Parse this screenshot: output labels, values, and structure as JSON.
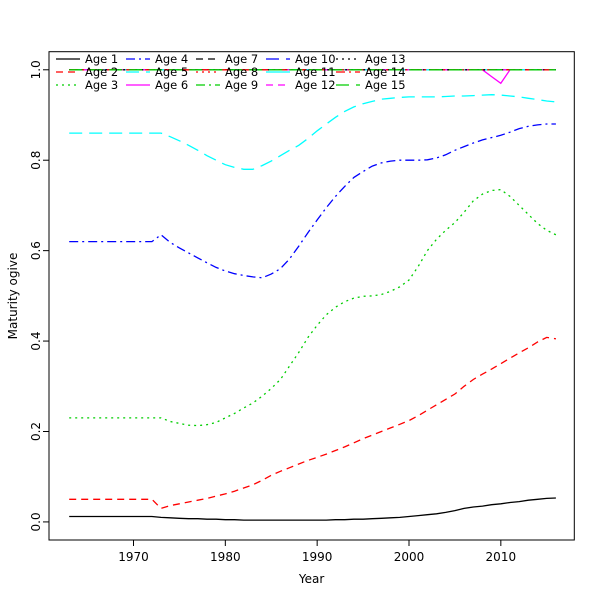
{
  "figure": {
    "background": "#FFFFFF"
  },
  "chart_data": {
    "type": "line",
    "title": "",
    "xlabel": "Year",
    "ylabel": "Maturity ogive",
    "x_ticks": [
      1970,
      1980,
      1990,
      2000,
      2010
    ],
    "y_ticks": [
      0.0,
      0.2,
      0.4,
      0.6,
      0.8,
      1.0
    ],
    "xlim": [
      1960.8,
      2018.0
    ],
    "ylim": [
      -0.04,
      1.04
    ],
    "grid": false,
    "legend_position": "top-inside",
    "legend_ncol": 5,
    "x": [
      1963,
      1964,
      1965,
      1966,
      1967,
      1968,
      1969,
      1970,
      1971,
      1972,
      1973,
      1974,
      1975,
      1976,
      1977,
      1978,
      1979,
      1980,
      1981,
      1982,
      1983,
      1984,
      1985,
      1986,
      1987,
      1988,
      1989,
      1990,
      1991,
      1992,
      1993,
      1994,
      1995,
      1996,
      1997,
      1998,
      1999,
      2000,
      2001,
      2002,
      2003,
      2004,
      2005,
      2006,
      2007,
      2008,
      2009,
      2010,
      2011,
      2012,
      2013,
      2014,
      2015,
      2016
    ],
    "series": [
      {
        "name": "Age 1",
        "color": "#000000",
        "linetype": "solid",
        "values": [
          0.012,
          0.012,
          0.012,
          0.012,
          0.012,
          0.012,
          0.012,
          0.012,
          0.012,
          0.012,
          0.01,
          0.009,
          0.008,
          0.007,
          0.007,
          0.006,
          0.006,
          0.005,
          0.005,
          0.004,
          0.004,
          0.004,
          0.004,
          0.004,
          0.004,
          0.004,
          0.004,
          0.004,
          0.004,
          0.005,
          0.005,
          0.006,
          0.006,
          0.007,
          0.008,
          0.009,
          0.01,
          0.012,
          0.014,
          0.016,
          0.018,
          0.021,
          0.025,
          0.03,
          0.033,
          0.035,
          0.038,
          0.04,
          0.043,
          0.045,
          0.048,
          0.05,
          0.052,
          0.053
        ]
      },
      {
        "name": "Age 2",
        "color": "#FF0000",
        "linetype": "dashed",
        "values": [
          0.05,
          0.05,
          0.05,
          0.05,
          0.05,
          0.05,
          0.05,
          0.05,
          0.05,
          0.05,
          0.03,
          0.036,
          0.04,
          0.044,
          0.048,
          0.052,
          0.057,
          0.062,
          0.068,
          0.075,
          0.082,
          0.092,
          0.103,
          0.112,
          0.12,
          0.128,
          0.136,
          0.143,
          0.15,
          0.158,
          0.166,
          0.175,
          0.184,
          0.192,
          0.2,
          0.208,
          0.216,
          0.224,
          0.235,
          0.247,
          0.259,
          0.271,
          0.283,
          0.3,
          0.315,
          0.327,
          0.338,
          0.35,
          0.362,
          0.374,
          0.385,
          0.398,
          0.408,
          0.405
        ]
      },
      {
        "name": "Age 3",
        "color": "#00CD00",
        "linetype": "dotted",
        "values": [
          0.23,
          0.23,
          0.23,
          0.23,
          0.23,
          0.23,
          0.23,
          0.23,
          0.23,
          0.23,
          0.23,
          0.222,
          0.218,
          0.214,
          0.213,
          0.215,
          0.22,
          0.23,
          0.24,
          0.252,
          0.263,
          0.278,
          0.295,
          0.315,
          0.345,
          0.375,
          0.408,
          0.435,
          0.458,
          0.475,
          0.487,
          0.495,
          0.499,
          0.5,
          0.503,
          0.51,
          0.52,
          0.535,
          0.565,
          0.6,
          0.625,
          0.645,
          0.662,
          0.685,
          0.71,
          0.725,
          0.733,
          0.735,
          0.72,
          0.7,
          0.68,
          0.66,
          0.645,
          0.635
        ]
      },
      {
        "name": "Age 4",
        "color": "#0000FF",
        "linetype": "dotdash",
        "values": [
          0.62,
          0.62,
          0.62,
          0.62,
          0.62,
          0.62,
          0.62,
          0.62,
          0.62,
          0.62,
          0.635,
          0.618,
          0.606,
          0.595,
          0.584,
          0.573,
          0.563,
          0.555,
          0.549,
          0.545,
          0.542,
          0.54,
          0.548,
          0.56,
          0.582,
          0.61,
          0.64,
          0.668,
          0.695,
          0.72,
          0.742,
          0.762,
          0.775,
          0.787,
          0.794,
          0.798,
          0.8,
          0.8,
          0.8,
          0.801,
          0.805,
          0.812,
          0.822,
          0.83,
          0.838,
          0.845,
          0.85,
          0.855,
          0.862,
          0.87,
          0.875,
          0.878,
          0.88,
          0.88
        ]
      },
      {
        "name": "Age 5",
        "color": "#00FFFF",
        "linetype": "longdash",
        "values": [
          0.86,
          0.86,
          0.86,
          0.86,
          0.86,
          0.86,
          0.86,
          0.86,
          0.86,
          0.86,
          0.86,
          0.852,
          0.843,
          0.833,
          0.822,
          0.81,
          0.8,
          0.79,
          0.784,
          0.78,
          0.78,
          0.788,
          0.798,
          0.81,
          0.822,
          0.833,
          0.848,
          0.865,
          0.88,
          0.895,
          0.908,
          0.918,
          0.925,
          0.93,
          0.935,
          0.937,
          0.939,
          0.94,
          0.94,
          0.94,
          0.94,
          0.941,
          0.942,
          0.942,
          0.943,
          0.944,
          0.945,
          0.944,
          0.942,
          0.94,
          0.937,
          0.934,
          0.931,
          0.929
        ]
      },
      {
        "name": "Age 6",
        "color": "#FF00FF",
        "linetype": "solid",
        "values": [
          1,
          1,
          1,
          1,
          1,
          1,
          1,
          1,
          1,
          1,
          1,
          1,
          1,
          1,
          1,
          1,
          1,
          1,
          1,
          1,
          1,
          1,
          1,
          1,
          1,
          1,
          1,
          1,
          1,
          1,
          1,
          1,
          1,
          1,
          1,
          1,
          1,
          1,
          1,
          1,
          1,
          1,
          1,
          1,
          1,
          1,
          0.985,
          0.97,
          1,
          1,
          1,
          1,
          1,
          1
        ]
      },
      {
        "name": "Age 7",
        "color": "#000000",
        "linetype": "dashed",
        "constant": 1.0
      },
      {
        "name": "Age 8",
        "color": "#FF0000",
        "linetype": "dotted",
        "constant": 1.0
      },
      {
        "name": "Age 9",
        "color": "#00CD00",
        "linetype": "dotdash",
        "constant": 1.0
      },
      {
        "name": "Age 10",
        "color": "#0000FF",
        "linetype": "longdash",
        "constant": 1.0
      },
      {
        "name": "Age 11",
        "color": "#00FFFF",
        "linetype": "solid",
        "constant": 1.0
      },
      {
        "name": "Age 12",
        "color": "#FF00FF",
        "linetype": "dashed",
        "constant": 1.0
      },
      {
        "name": "Age 13",
        "color": "#000000",
        "linetype": "dotted",
        "constant": 1.0
      },
      {
        "name": "Age 14",
        "color": "#FF0000",
        "linetype": "dotdash",
        "constant": 1.0
      },
      {
        "name": "Age 15",
        "color": "#00CD00",
        "linetype": "longdash",
        "constant": 1.0
      }
    ]
  }
}
